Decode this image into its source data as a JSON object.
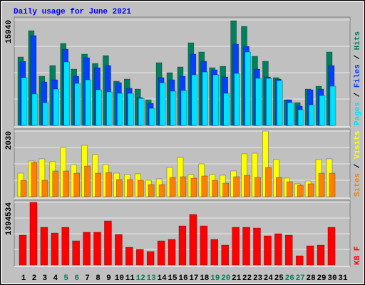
{
  "chart_data": [
    {
      "type": "bar",
      "title": "Daily usage for June 2021",
      "legend_separator": "/",
      "ylim": [
        0,
        15940
      ],
      "yticks": [
        15940
      ],
      "series": [
        {
          "name": "Hits",
          "color": "#00805c",
          "values": [
            10340,
            14320,
            7430,
            9050,
            12390,
            8510,
            10770,
            9370,
            10550,
            6680,
            7000,
            5490,
            3880,
            9480,
            7970,
            8830,
            12490,
            11090,
            8720,
            8940,
            15830,
            14970,
            10450,
            9690,
            7220,
            3880,
            3450,
            5490,
            5920,
            11090,
            null
          ]
        },
        {
          "name": "Files",
          "color": "#0040ff",
          "values": [
            9690,
            13570,
            6570,
            6890,
            11520,
            7430,
            10230,
            8720,
            9050,
            6460,
            5600,
            4200,
            3340,
            7220,
            6890,
            7430,
            10770,
            9690,
            8400,
            7320,
            12280,
            11950,
            8510,
            7320,
            7000,
            3880,
            2910,
            5380,
            5490,
            9050,
            null
          ]
        },
        {
          "name": "Pages",
          "color": "#00e0ff",
          "values": [
            7220,
            4740,
            3450,
            5490,
            9590,
            6350,
            6890,
            5380,
            5060,
            4850,
            4850,
            4090,
            2580,
            6460,
            5170,
            5280,
            7650,
            8080,
            7650,
            4850,
            7860,
            11090,
            7110,
            7110,
            6780,
            3450,
            2370,
            3120,
            4520,
            5920,
            null
          ]
        }
      ]
    },
    {
      "type": "bar",
      "legend_separator": "/",
      "ylim": [
        0,
        2030
      ],
      "yticks": [
        2030
      ],
      "series": [
        {
          "name": "Visits",
          "color": "#ffff00",
          "values": [
            728,
            1104,
            1170,
            1081,
            1523,
            993,
            1589,
            1302,
            993,
            728,
            684,
            706,
            508,
            552,
            905,
            1214,
            684,
            1015,
            684,
            662,
            795,
            1324,
            1346,
            2030,
            1148,
            574,
            397,
            486,
            1148,
            1170,
            null
          ]
        },
        {
          "name": "Sites",
          "color": "#ff8000",
          "values": [
            508,
            1059,
            508,
            795,
            795,
            728,
            949,
            728,
            750,
            530,
            530,
            508,
            375,
            375,
            596,
            618,
            574,
            640,
            508,
            419,
            618,
            662,
            596,
            905,
            596,
            463,
            353,
            397,
            728,
            728,
            null
          ]
        }
      ]
    },
    {
      "type": "bar",
      "ylim": [
        0,
        1394534
      ],
      "yticks": [
        1394534
      ],
      "categories": [
        "1",
        "2",
        "3",
        "4",
        "5",
        "6",
        "7",
        "8",
        "9",
        "10",
        "11",
        "12",
        "13",
        "14",
        "15",
        "16",
        "17",
        "18",
        "19",
        "20",
        "21",
        "22",
        "23",
        "24",
        "25",
        "26",
        "27",
        "28",
        "29",
        "30",
        "31"
      ],
      "category_colors": [
        "#000000",
        "#000000",
        "#000000",
        "#000000",
        "#00805c",
        "#00805c",
        "#000000",
        "#000000",
        "#000000",
        "#000000",
        "#000000",
        "#00805c",
        "#00805c",
        "#000000",
        "#000000",
        "#000000",
        "#000000",
        "#000000",
        "#00805c",
        "#00805c",
        "#000000",
        "#000000",
        "#000000",
        "#000000",
        "#000000",
        "#00805c",
        "#00805c",
        "#000000",
        "#000000",
        "#000000",
        "#000000"
      ],
      "series": [
        {
          "name": "KB F",
          "color": "#ff0000",
          "values": [
            665600,
            1394534,
            839900,
            713100,
            839900,
            538800,
            729000,
            729000,
            982500,
            681400,
            396200,
            348600,
            301100,
            538800,
            570500,
            871600,
            1125100,
            871600,
            570500,
            443700,
            839900,
            839900,
            824000,
            649700,
            697300,
            665600,
            206000,
            427900,
            443700,
            839900,
            null
          ]
        }
      ]
    }
  ]
}
